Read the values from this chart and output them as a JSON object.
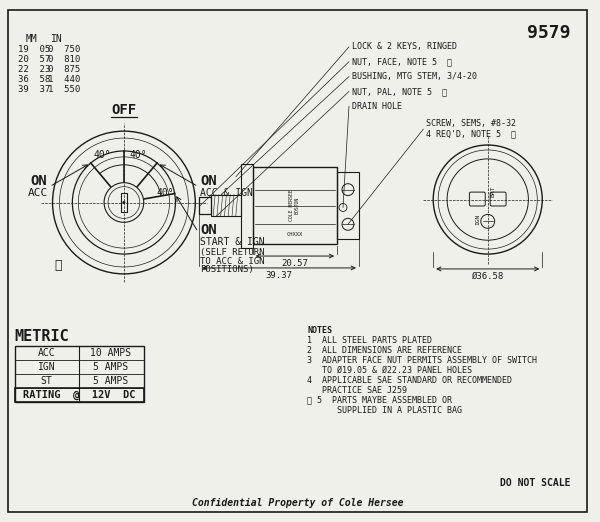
{
  "bg_color": "#f0f0eb",
  "line_color": "#1a1a1a",
  "part_number": "9579",
  "confidential_text": "Confidential Property of Cole Hersee",
  "mm_in_rows": [
    [
      "19  05",
      "0  750"
    ],
    [
      "20  57",
      "0  810"
    ],
    [
      "22  23",
      "0  875"
    ],
    [
      "36  58",
      "1  440"
    ],
    [
      "39  37",
      "1  550"
    ]
  ],
  "metric_rows": [
    [
      "ACC",
      "10 AMPS"
    ],
    [
      "IGN",
      "5 AMPS"
    ],
    [
      "ST",
      "5 AMPS"
    ]
  ],
  "rating_text": "RATING  @  12V  DC",
  "note_lines": [
    "NOTES",
    "1  ALL STEEL PARTS PLATED",
    "2  ALL DIMENSIONS ARE REFERENCE",
    "3  ADAPTER FACE NUT PERMITS ASSEMBLY OF SWITCH",
    "   TO Ø19.05 & Ø22.23 PANEL HOLES",
    "4  APPLICABLE SAE STANDARD OR RECOMMENDED",
    "   PRACTICE SAE J259",
    "Ⓨ 5  PARTS MAYBE ASSEMBLED OR",
    "      SUPPLIED IN A PLASTIC BAG"
  ],
  "dim_2057": "20.57",
  "dim_3937": "39.37",
  "dim_3658": "Ø36.58"
}
